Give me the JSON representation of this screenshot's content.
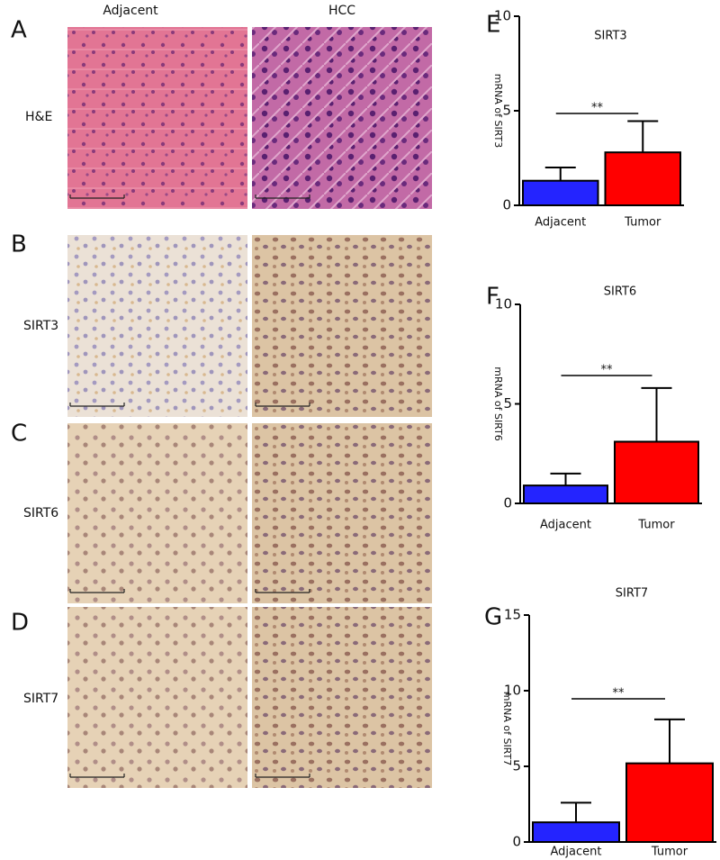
{
  "figure": {
    "panels": [
      "A",
      "B",
      "C",
      "D"
    ],
    "columns": [
      "Adjacent",
      "HCC"
    ],
    "rows": [
      "H&E",
      "SIRT3",
      "SIRT6",
      "SIRT7"
    ]
  },
  "chart_data": [
    {
      "type": "bar",
      "panel": "E",
      "title": "SIRT3",
      "ylabel": "mRNA of SIRT3",
      "categories": [
        "Adjacent",
        "Tumor"
      ],
      "values": [
        1.3,
        2.8
      ],
      "errors": [
        0.7,
        1.65
      ],
      "colors": [
        "#2424ff",
        "#ff0000"
      ],
      "ylim": [
        0,
        10
      ],
      "yticks": [
        0,
        5,
        10
      ],
      "annotation": "**"
    },
    {
      "type": "bar",
      "panel": "F",
      "title": "SIRT6",
      "ylabel": "mRNA of SIRT6",
      "categories": [
        "Adjacent",
        "Tumor"
      ],
      "values": [
        0.9,
        3.1
      ],
      "errors": [
        0.6,
        2.7
      ],
      "colors": [
        "#2424ff",
        "#ff0000"
      ],
      "ylim": [
        0,
        10
      ],
      "yticks": [
        0,
        5,
        10
      ],
      "annotation": "**"
    },
    {
      "type": "bar",
      "panel": "G",
      "title": "SIRT7",
      "ylabel": "mRNA of SIRT7",
      "categories": [
        "Adjacent",
        "Tumor"
      ],
      "values": [
        1.3,
        5.2
      ],
      "errors": [
        1.3,
        2.9
      ],
      "colors": [
        "#2424ff",
        "#ff0000"
      ],
      "ylim": [
        0,
        15
      ],
      "yticks": [
        0,
        5,
        10,
        15
      ],
      "annotation": "**"
    }
  ]
}
